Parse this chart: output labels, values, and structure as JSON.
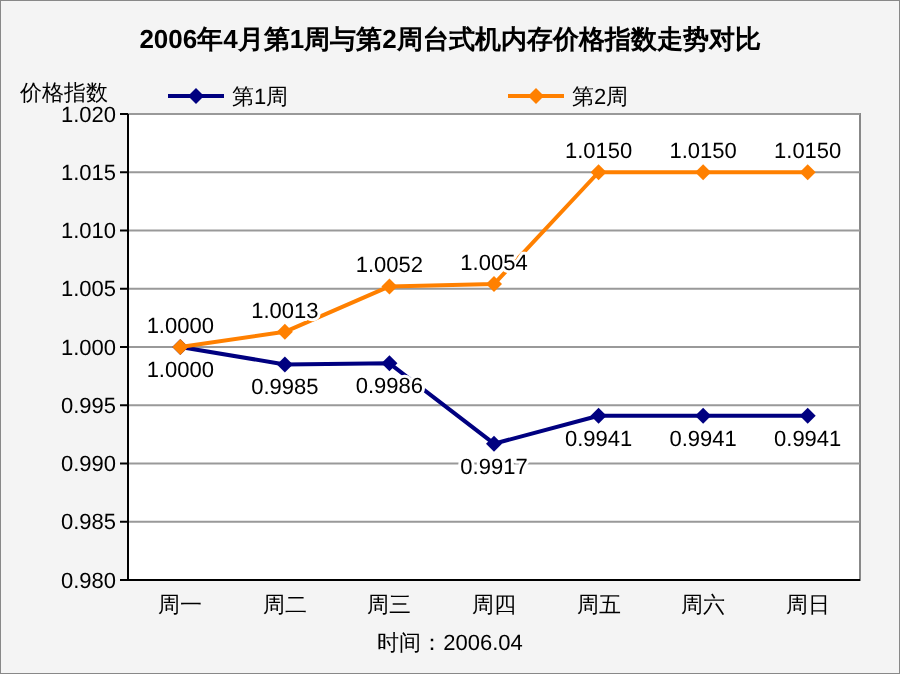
{
  "chart_data": {
    "type": "line",
    "title": "2006年4月第1周与第2周台式机内存价格指数走势对比",
    "ylabel": "价格指数",
    "categories": [
      "周一",
      "周二",
      "周三",
      "周四",
      "周五",
      "周六",
      "周日"
    ],
    "series": [
      {
        "name": "第1周",
        "color": "#000080",
        "values": [
          1.0,
          0.9985,
          0.9986,
          0.9917,
          0.9941,
          0.9941,
          0.9941
        ],
        "value_labels": [
          "1.0000",
          "0.9985",
          "0.9986",
          "0.9917",
          "0.9941",
          "0.9941",
          "0.9941"
        ]
      },
      {
        "name": "第2周",
        "color": "#ff8000",
        "values": [
          1.0,
          1.0013,
          1.0052,
          1.0054,
          1.015,
          1.015,
          1.015
        ],
        "value_labels": [
          "1.0000",
          "1.0013",
          "1.0052",
          "1.0054",
          "1.0150",
          "1.0150",
          "1.0150"
        ]
      }
    ],
    "ylim": [
      0.98,
      1.02
    ],
    "yticks": [
      {
        "value": 0.98,
        "label": "0.980"
      },
      {
        "value": 0.985,
        "label": "0.985"
      },
      {
        "value": 0.99,
        "label": "0.990"
      },
      {
        "value": 0.995,
        "label": "0.995"
      },
      {
        "value": 1.0,
        "label": "1.000"
      },
      {
        "value": 1.005,
        "label": "1.005"
      },
      {
        "value": 1.01,
        "label": "1.010"
      },
      {
        "value": 1.015,
        "label": "1.015"
      },
      {
        "value": 1.02,
        "label": "1.020"
      }
    ],
    "grid": "y",
    "legend": "top",
    "marker": "diamond",
    "line_style": "solid",
    "annotations": [
      "时间：2006.04"
    ]
  }
}
